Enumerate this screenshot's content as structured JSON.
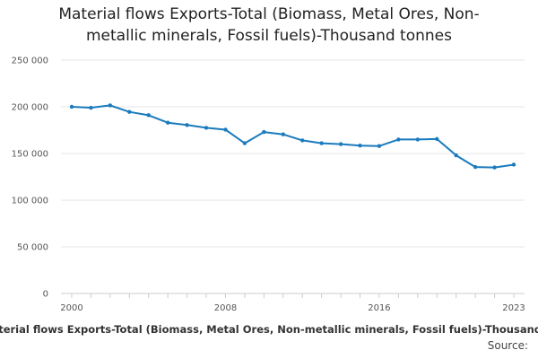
{
  "chart_data": {
    "type": "line",
    "title_line1": "Material flows Exports-Total (Biomass, Metal Ores, Non-",
    "title_line2": "metallic minerals, Fossil fuels)-Thousand tonnes",
    "caption": "Material flows Exports-Total (Biomass, Metal Ores, Non-metallic minerals, Fossil fuels)-Thousand tonnes",
    "source_label": "Source:",
    "x": [
      2000,
      2001,
      2002,
      2003,
      2004,
      2005,
      2006,
      2007,
      2008,
      2009,
      2010,
      2011,
      2012,
      2013,
      2014,
      2015,
      2016,
      2017,
      2018,
      2019,
      2020,
      2021,
      2022,
      2023
    ],
    "values": [
      200000,
      199000,
      201500,
      194500,
      191000,
      183000,
      180500,
      177500,
      175500,
      161000,
      173000,
      170500,
      164000,
      161000,
      160000,
      158500,
      158000,
      165000,
      165000,
      165500,
      148000,
      135500,
      135000,
      138000
    ],
    "ylim": [
      0,
      250000
    ],
    "yticks": [
      0,
      50000,
      100000,
      150000,
      200000,
      250000
    ],
    "ytick_labels": [
      "0",
      "50 000",
      "100 000",
      "150 000",
      "200 000",
      "250 000"
    ],
    "xticks": [
      2000,
      2008,
      2016,
      2023
    ],
    "xtick_labels": [
      "2000",
      "2008",
      "2016",
      "2023"
    ],
    "grid": true,
    "line_color": "#1a7bbd"
  }
}
